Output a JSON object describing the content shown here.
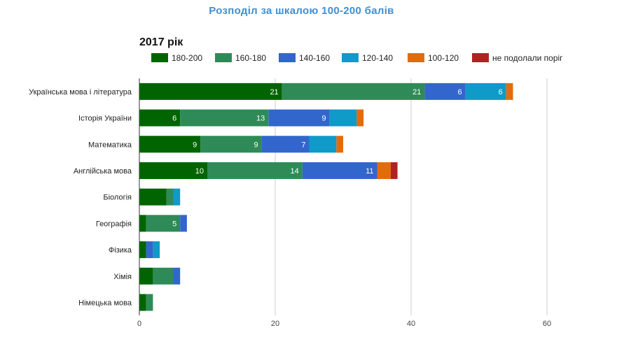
{
  "page_title": "Розподіл за шкалою 100-200 балів",
  "chart_data": {
    "type": "bar",
    "orientation": "horizontal",
    "stacked": true,
    "title": "2017 рік",
    "xlabel": "",
    "ylabel": "",
    "xlim": [
      0,
      60
    ],
    "x_ticks": [
      "0",
      "20",
      "40",
      "60"
    ],
    "grid": true,
    "legend_position": "top",
    "categories": [
      "Українська мова і література",
      "Історія України",
      "Математика",
      "Англійська мова",
      "Біологія",
      "Географія",
      "Фізика",
      "Хімія",
      "Німецька мова"
    ],
    "series": [
      {
        "name": "180-200",
        "color": "#006400",
        "values": [
          21,
          6,
          9,
          10,
          4,
          1,
          1,
          2,
          1
        ]
      },
      {
        "name": "160-180",
        "color": "#2e8b57",
        "values": [
          21,
          13,
          9,
          14,
          1,
          5,
          0,
          3,
          1
        ]
      },
      {
        "name": "140-160",
        "color": "#3366cc",
        "values": [
          6,
          9,
          7,
          11,
          0,
          1,
          1,
          1,
          0
        ]
      },
      {
        "name": "120-140",
        "color": "#0f9ac8",
        "values": [
          6,
          4,
          4,
          0,
          1,
          0,
          1,
          0,
          0
        ]
      },
      {
        "name": "100-120",
        "color": "#e36c0a",
        "values": [
          1,
          1,
          1,
          2,
          0,
          0,
          0,
          0,
          0
        ]
      },
      {
        "name": "не подолали поріг",
        "color": "#b22222",
        "values": [
          0,
          0,
          0,
          1,
          0,
          0,
          0,
          0,
          0
        ]
      }
    ],
    "data_labels": [
      [
        "21",
        "21",
        "6",
        "6",
        "",
        ""
      ],
      [
        "6",
        "13",
        "9",
        "",
        "",
        ""
      ],
      [
        "9",
        "9",
        "7",
        "",
        "",
        ""
      ],
      [
        "10",
        "14",
        "11",
        "",
        "",
        ""
      ],
      [
        "",
        "",
        "",
        "",
        "",
        ""
      ],
      [
        "",
        "5",
        "",
        "",
        "",
        ""
      ],
      [
        "",
        "",
        "",
        "",
        "",
        ""
      ],
      [
        "",
        "",
        "",
        "",
        "",
        ""
      ],
      [
        "",
        "",
        "",
        "",
        "",
        ""
      ]
    ]
  }
}
